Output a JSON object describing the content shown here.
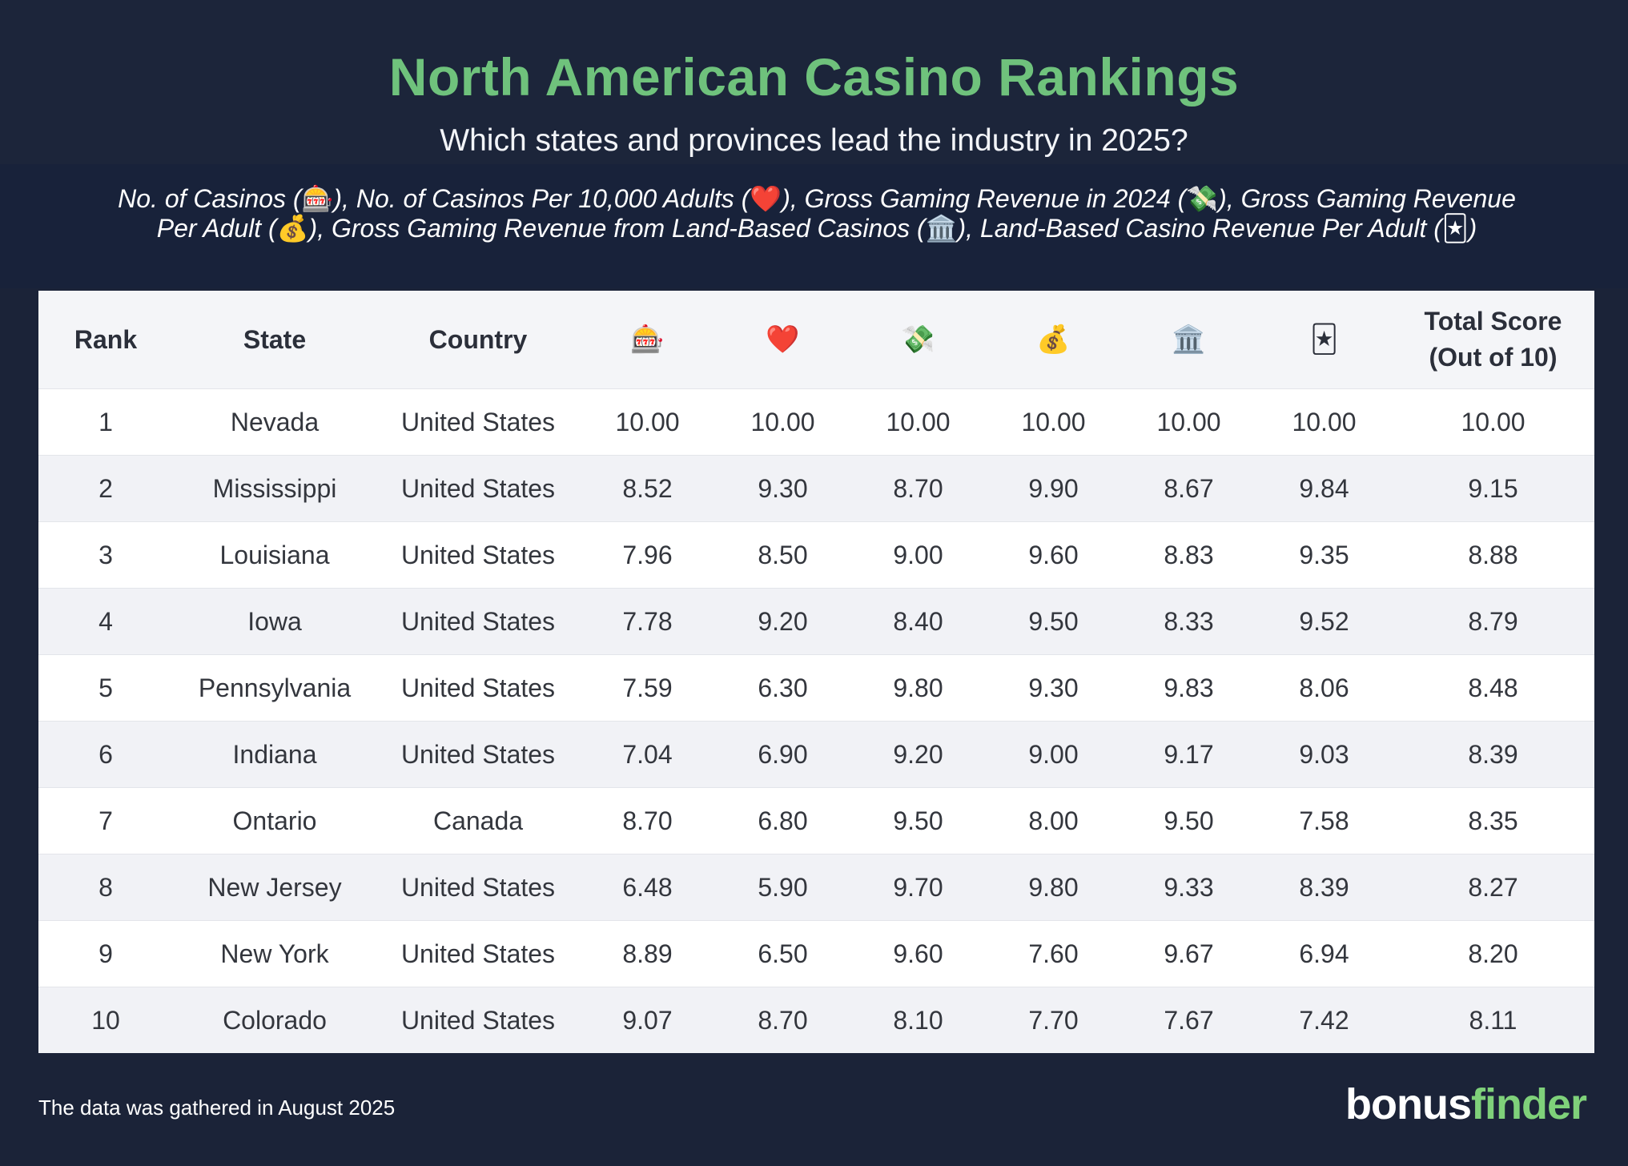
{
  "title": "North American Casino Rankings",
  "subtitle": "Which states and provinces lead the industry in 2025?",
  "legend": {
    "line1": [
      {
        "text": "No. of Casinos (",
        "icon": "🎰",
        "after": "), "
      },
      {
        "text": "No. of Casinos Per 10,000 Adults (",
        "icon": "❤️",
        "after": "), "
      },
      {
        "text": "Gross Gaming Revenue in 2024 (",
        "icon": "💸",
        "after": "), "
      },
      {
        "text": "Gross Gaming Revenue",
        "icon": "",
        "after": ""
      }
    ],
    "line2": [
      {
        "text": "Per Adult (",
        "icon": "💰",
        "after": "), "
      },
      {
        "text": "Gross Gaming Revenue from Land-Based Casinos (",
        "icon": "🏛️",
        "after": "), "
      },
      {
        "text": "Land-Based Casino Revenue Per Adult (",
        "icon": "🃏",
        "after": ")"
      }
    ]
  },
  "chart_data": {
    "type": "table",
    "columns": [
      "Rank",
      "State",
      "Country",
      "🎰",
      "❤️",
      "💸",
      "💰",
      "🏛️",
      "🃏",
      "Total Score (Out of 10)"
    ],
    "header_total_line1": "Total Score",
    "header_total_line2": "(Out of 10)",
    "rows": [
      [
        "1",
        "Nevada",
        "United States",
        "10.00",
        "10.00",
        "10.00",
        "10.00",
        "10.00",
        "10.00",
        "10.00"
      ],
      [
        "2",
        "Mississippi",
        "United States",
        "8.52",
        "9.30",
        "8.70",
        "9.90",
        "8.67",
        "9.84",
        "9.15"
      ],
      [
        "3",
        "Louisiana",
        "United States",
        "7.96",
        "8.50",
        "9.00",
        "9.60",
        "8.83",
        "9.35",
        "8.88"
      ],
      [
        "4",
        "Iowa",
        "United States",
        "7.78",
        "9.20",
        "8.40",
        "9.50",
        "8.33",
        "9.52",
        "8.79"
      ],
      [
        "5",
        "Pennsylvania",
        "United States",
        "7.59",
        "6.30",
        "9.80",
        "9.30",
        "9.83",
        "8.06",
        "8.48"
      ],
      [
        "6",
        "Indiana",
        "United States",
        "7.04",
        "6.90",
        "9.20",
        "9.00",
        "9.17",
        "9.03",
        "8.39"
      ],
      [
        "7",
        "Ontario",
        "Canada",
        "8.70",
        "6.80",
        "9.50",
        "8.00",
        "9.50",
        "7.58",
        "8.35"
      ],
      [
        "8",
        "New Jersey",
        "United States",
        "6.48",
        "5.90",
        "9.70",
        "9.80",
        "9.33",
        "8.39",
        "8.27"
      ],
      [
        "9",
        "New York",
        "United States",
        "8.89",
        "6.50",
        "9.60",
        "7.60",
        "9.67",
        "6.94",
        "8.20"
      ],
      [
        "10",
        "Colorado",
        "United States",
        "9.07",
        "8.70",
        "8.10",
        "7.70",
        "7.67",
        "7.42",
        "8.11"
      ]
    ]
  },
  "footnote": "The data was gathered in August 2025",
  "logo": {
    "part1": "bonus",
    "part2": "finder"
  }
}
